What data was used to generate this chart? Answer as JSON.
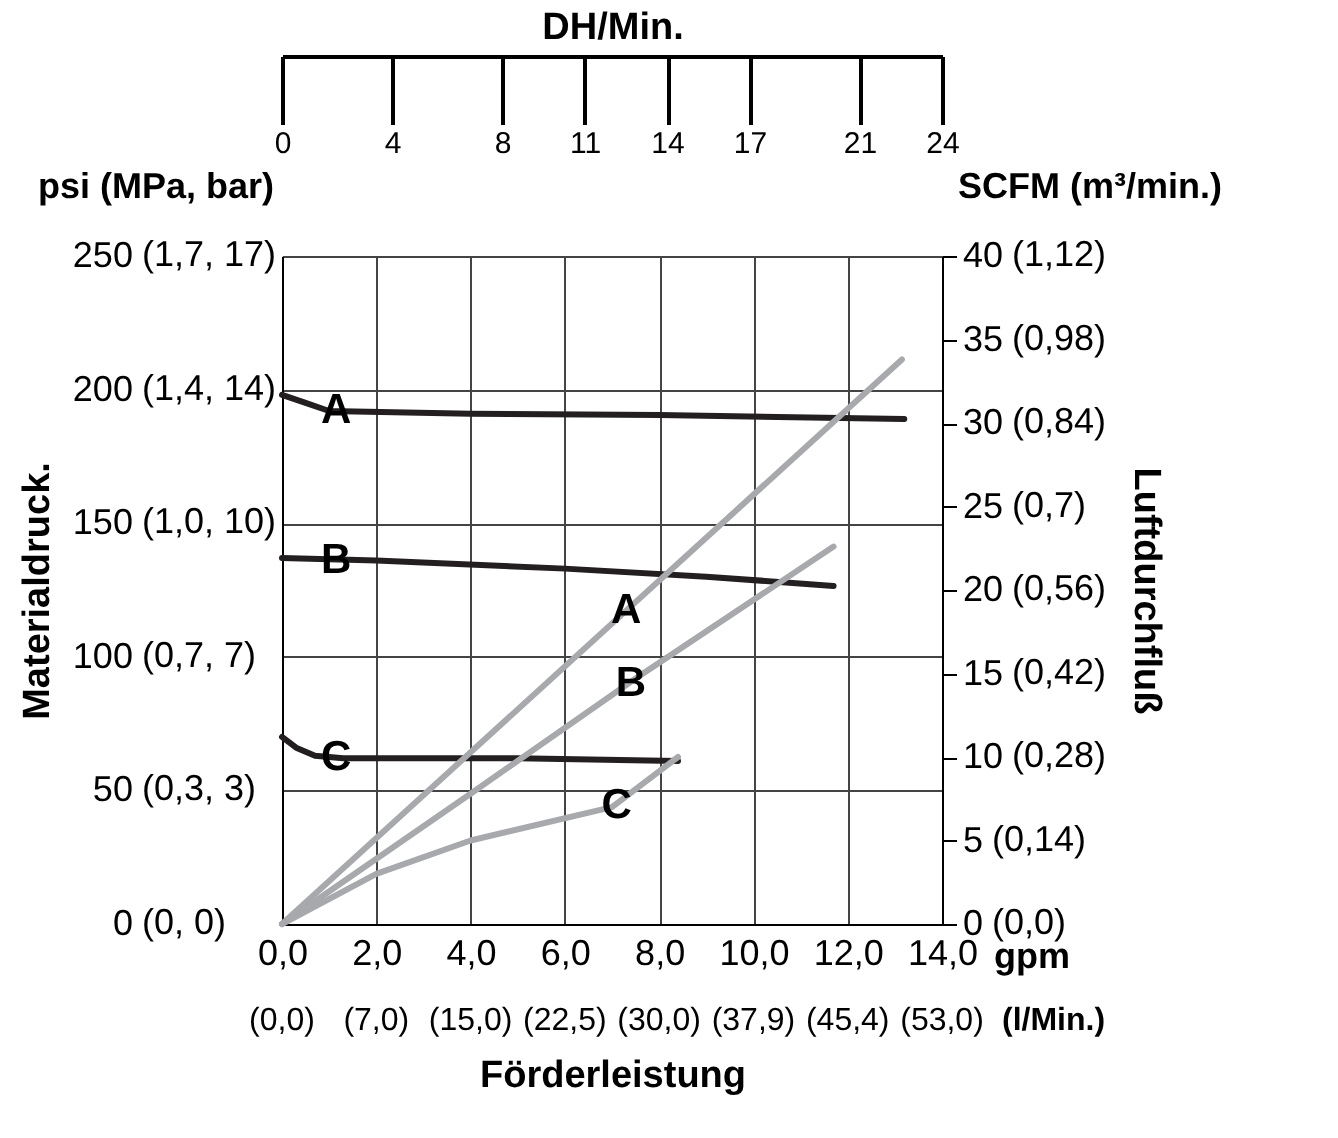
{
  "chart_data": {
    "type": "line",
    "xlabel": "Förderleistung",
    "ylabel": "Materialdruck.",
    "y2label": "Luftdurchfluß",
    "x2label": "DH/Min.",
    "xlim": [
      0,
      14
    ],
    "xticks": [
      {
        "value": 0,
        "label": "0,0"
      },
      {
        "value": 2,
        "label": "2,0"
      },
      {
        "value": 4,
        "label": "4,0"
      },
      {
        "value": 6,
        "label": "6,0"
      },
      {
        "value": 8,
        "label": "8,0"
      },
      {
        "value": 10,
        "label": "10,0"
      },
      {
        "value": 12,
        "label": "12,0"
      },
      {
        "value": 14,
        "label": "14,0"
      }
    ],
    "x2lim": [
      0,
      24
    ],
    "x2ticks": [
      0,
      4,
      8,
      11,
      14,
      17,
      21,
      24
    ],
    "ylim": [
      0,
      250
    ],
    "yticks": [
      0,
      50,
      100,
      150,
      200,
      250
    ],
    "y2lim": [
      0,
      40
    ],
    "y2ticks": [
      0,
      5,
      10,
      15,
      20,
      25,
      30,
      35,
      40
    ],
    "series": [
      {
        "color": "#231f20",
        "x": [
          0,
          0.5,
          1,
          4,
          8,
          13.2
        ],
        "values": [
          198,
          195,
          192,
          191,
          190.5,
          189
        ]
      },
      {
        "color": "#231f20",
        "x": [
          0,
          2,
          6,
          9,
          11.7
        ],
        "values": [
          137,
          136,
          133,
          130,
          126.5
        ]
      },
      {
        "color": "#231f20",
        "x": [
          0,
          0.3,
          0.7,
          1.3,
          5,
          8.4
        ],
        "values": [
          70,
          66,
          63,
          62,
          62,
          61
        ]
      },
      {
        "color": "#a7a9ac",
        "axis": "y2",
        "x": [
          0,
          13.15
        ],
        "values": [
          0,
          33.8
        ]
      },
      {
        "color": "#a7a9ac",
        "axis": "y2",
        "x": [
          0,
          4,
          7.5,
          11.7
        ],
        "values": [
          0,
          7.8,
          14.7,
          22.6
        ]
      },
      {
        "color": "#a7a9ac",
        "axis": "y2",
        "x": [
          0,
          2,
          4,
          7,
          8.4
        ],
        "values": [
          0,
          3,
          5,
          7,
          10
        ]
      }
    ],
    "annotations": [
      "psi (MPa, bar)",
      "SCFM (m³/min.)",
      "gpm",
      "(l/Min.)",
      "(0, 0)",
      "(0,3, 3)",
      "(0,7, 7)",
      "(1,0, 10)",
      "(1,4, 14)",
      "(1,7, 17)",
      "(0,0)",
      "(0,14)",
      "(0,28)",
      "(0,42)",
      "(0,56)",
      "(0,7)",
      "(0,84)",
      "(0,98)",
      "(1,12)",
      "(0,0)",
      "(7,0)",
      "(15,0)",
      "(22,5)",
      "(30,0)",
      "(37,9)",
      "(45,4)",
      "(53,0)",
      {
        "text": "A",
        "x": 1.15,
        "y": 192
      },
      {
        "text": "B",
        "x": 1.15,
        "y": 136
      },
      {
        "text": "C",
        "x": 1.15,
        "y": 62
      },
      {
        "text": "A",
        "x": 7.3,
        "y": 117
      },
      {
        "text": "B",
        "x": 7.4,
        "y": 90
      },
      {
        "text": "C",
        "x": 7.1,
        "y": 44
      }
    ],
    "grid": true,
    "legend": false,
    "marker": "none",
    "line_style": "solid"
  }
}
